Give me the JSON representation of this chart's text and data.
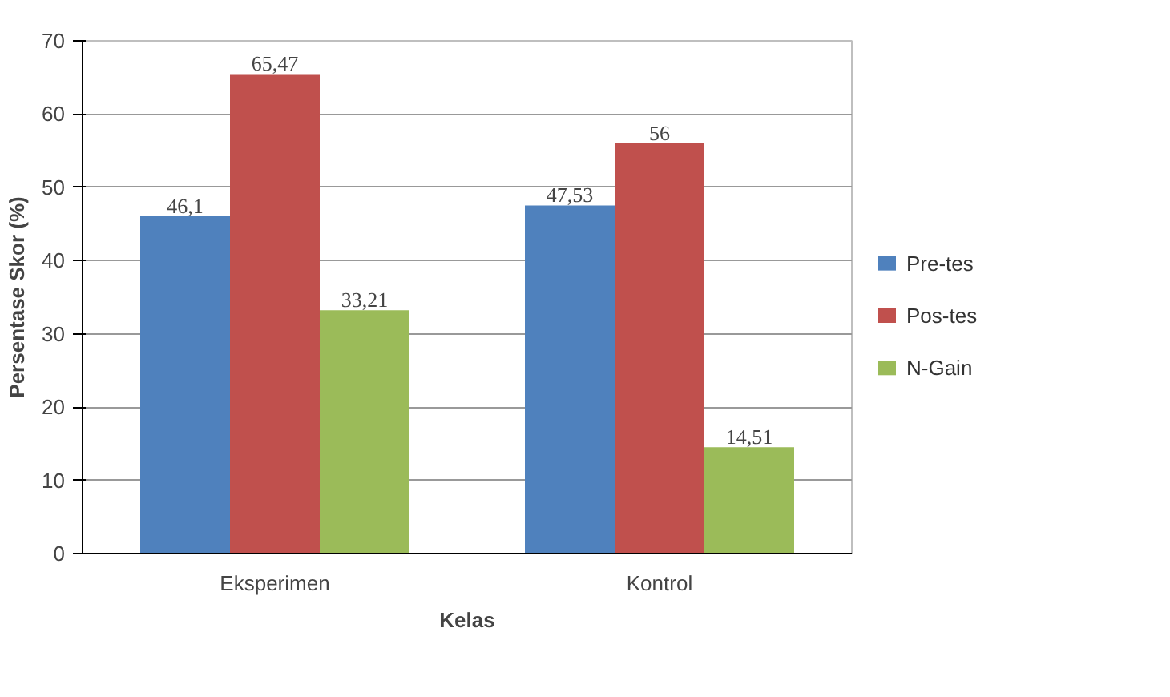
{
  "chart_data": {
    "type": "bar",
    "xlabel": "Kelas",
    "ylabel": "Persentase Skor (%)",
    "categories": [
      "Eksperimen",
      "Kontrol"
    ],
    "series": [
      {
        "name": "Pre-tes",
        "color": "#4f81bd",
        "values": [
          46.1,
          47.53
        ],
        "value_labels": [
          "46,1",
          "47,53"
        ]
      },
      {
        "name": "Pos-tes",
        "color": "#c0504d",
        "values": [
          65.47,
          56
        ],
        "value_labels": [
          "65,47",
          "56"
        ]
      },
      {
        "name": "N-Gain",
        "color": "#9bbb59",
        "values": [
          33.21,
          14.51
        ],
        "value_labels": [
          "33,21",
          "14,51"
        ]
      }
    ],
    "ylim": [
      0,
      70
    ],
    "yticks": [
      0,
      10,
      20,
      30,
      40,
      50,
      60,
      70
    ],
    "grid": "y",
    "legend": "right"
  }
}
